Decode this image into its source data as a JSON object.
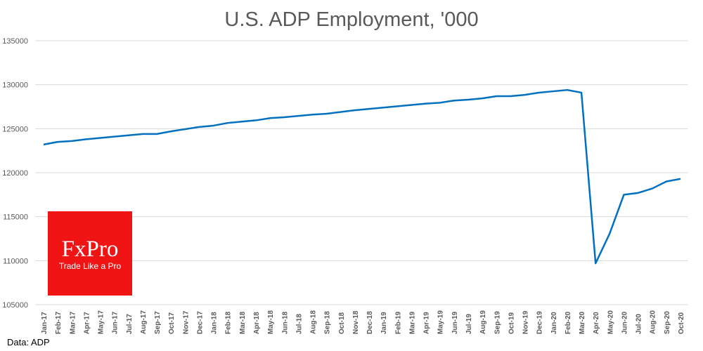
{
  "chart_data": {
    "type": "line",
    "title": "U.S. ADP Employment, '000",
    "xlabel": "",
    "ylabel": "",
    "ylim": [
      105000,
      135000
    ],
    "yticks": [
      105000,
      110000,
      115000,
      120000,
      125000,
      130000,
      135000
    ],
    "grid": true,
    "color": "#0070c0",
    "categories": [
      "Jan-17",
      "Feb-17",
      "Mar-17",
      "Apr-17",
      "May-17",
      "Jun-17",
      "Jul-17",
      "Aug-17",
      "Sep-17",
      "Oct-17",
      "Nov-17",
      "Dec-17",
      "Jan-18",
      "Feb-18",
      "Mar-18",
      "Apr-18",
      "May-18",
      "Jun-18",
      "Jul-18",
      "Aug-18",
      "Sep-18",
      "Oct-18",
      "Nov-18",
      "Dec-18",
      "Jan-19",
      "Feb-19",
      "Mar-19",
      "Apr-19",
      "May-19",
      "Jun-19",
      "Jul-19",
      "Aug-19",
      "Sep-19",
      "Oct-19",
      "Nov-19",
      "Dec-19",
      "Jan-20",
      "Feb-20",
      "Mar-20",
      "Apr-20",
      "May-20",
      "Jun-20",
      "Jul-20",
      "Aug-20",
      "Sep-20",
      "Oct-20"
    ],
    "values": [
      123200,
      123500,
      123600,
      123800,
      123950,
      124100,
      124250,
      124400,
      124400,
      124700,
      124950,
      125200,
      125350,
      125650,
      125800,
      125950,
      126200,
      126300,
      126450,
      126600,
      126700,
      126900,
      127100,
      127250,
      127400,
      127550,
      127700,
      127850,
      127950,
      128200,
      128300,
      128450,
      128700,
      128700,
      128850,
      129100,
      129250,
      129400,
      129100,
      109700,
      113100,
      117500,
      117700,
      118200,
      119000,
      119300
    ]
  },
  "logo": {
    "brand": "FxPro",
    "tagline": "Trade Like a Pro"
  },
  "source": "Data: ADP"
}
